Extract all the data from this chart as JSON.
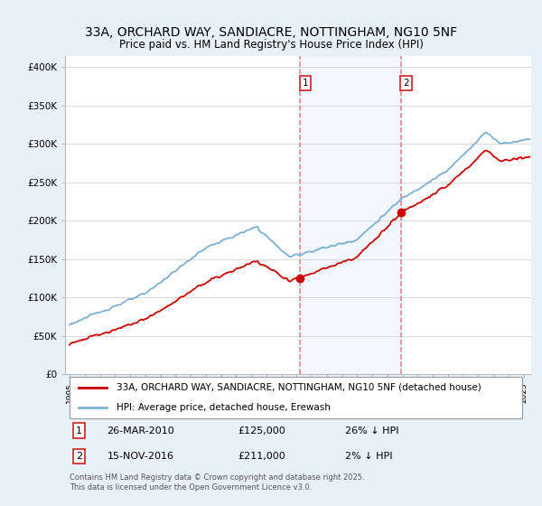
{
  "title": "33A, ORCHARD WAY, SANDIACRE, NOTTINGHAM, NG10 5NF",
  "subtitle": "Price paid vs. HM Land Registry's House Price Index (HPI)",
  "ylabel_ticks": [
    "£0",
    "£50K",
    "£100K",
    "£150K",
    "£200K",
    "£250K",
    "£300K",
    "£350K",
    "£400K"
  ],
  "ytick_values": [
    0,
    50000,
    100000,
    150000,
    200000,
    250000,
    300000,
    350000,
    400000
  ],
  "ylim": [
    0,
    415000
  ],
  "xlim_start": 1994.7,
  "xlim_end": 2025.5,
  "sale1_date": 2010.23,
  "sale1_price": 125000,
  "sale2_date": 2016.88,
  "sale2_price": 211000,
  "line_color_property": "#cc0000",
  "line_color_hpi": "#7ab0d4",
  "marker_color": "#cc0000",
  "vline_color": "#e87070",
  "shade_color": "#d8eaf8",
  "legend_label1": "33A, ORCHARD WAY, SANDIACRE, NOTTINGHAM, NG10 5NF (detached house)",
  "legend_label2": "HPI: Average price, detached house, Erewash",
  "footnote": "Contains HM Land Registry data © Crown copyright and database right 2025.\nThis data is licensed under the Open Government Licence v3.0.",
  "bg_color": "#e8f0f8",
  "plot_bg_color": "#ffffff",
  "title_fontsize": 10,
  "tick_fontsize": 7.5,
  "legend_fontsize": 7.5
}
